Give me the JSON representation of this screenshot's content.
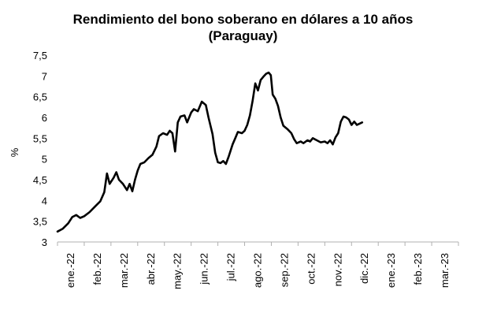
{
  "chart_data": {
    "type": "line",
    "title": "Rendimiento del bono soberano en dólares a 10 años",
    "subtitle": "(Paraguay)",
    "xlabel": "",
    "ylabel": "%",
    "ylim": [
      3,
      7.5
    ],
    "yticks": [
      "3",
      "3,5",
      "4",
      "4,5",
      "5",
      "5,5",
      "6",
      "6,5",
      "7",
      "7,5"
    ],
    "x_tick_labels": [
      "ene.-22",
      "feb.-22",
      "mar.-22",
      "abr.-22",
      "may.-22",
      "jun.-22",
      "jul.-22",
      "ago.-22",
      "sep.-22",
      "oct.-22",
      "nov.-22",
      "dic.-22",
      "ene.-23",
      "feb.-23",
      "mar.-23"
    ],
    "grid": false,
    "legend": "none",
    "line_color": "#000000",
    "series": [
      {
        "name": "",
        "values": [
          [
            0.0,
            3.25
          ],
          [
            0.2,
            3.32
          ],
          [
            0.4,
            3.45
          ],
          [
            0.55,
            3.6
          ],
          [
            0.7,
            3.65
          ],
          [
            0.85,
            3.58
          ],
          [
            1.0,
            3.62
          ],
          [
            1.2,
            3.72
          ],
          [
            1.4,
            3.85
          ],
          [
            1.6,
            3.98
          ],
          [
            1.75,
            4.2
          ],
          [
            1.85,
            4.65
          ],
          [
            1.95,
            4.4
          ],
          [
            2.1,
            4.55
          ],
          [
            2.2,
            4.68
          ],
          [
            2.3,
            4.5
          ],
          [
            2.45,
            4.4
          ],
          [
            2.6,
            4.25
          ],
          [
            2.7,
            4.4
          ],
          [
            2.8,
            4.22
          ],
          [
            2.9,
            4.5
          ],
          [
            3.0,
            4.72
          ],
          [
            3.1,
            4.88
          ],
          [
            3.25,
            4.92
          ],
          [
            3.4,
            5.02
          ],
          [
            3.55,
            5.1
          ],
          [
            3.7,
            5.3
          ],
          [
            3.8,
            5.55
          ],
          [
            3.95,
            5.62
          ],
          [
            4.1,
            5.58
          ],
          [
            4.2,
            5.68
          ],
          [
            4.3,
            5.62
          ],
          [
            4.4,
            5.18
          ],
          [
            4.5,
            5.88
          ],
          [
            4.6,
            6.02
          ],
          [
            4.75,
            6.05
          ],
          [
            4.85,
            5.88
          ],
          [
            5.0,
            6.12
          ],
          [
            5.1,
            6.2
          ],
          [
            5.25,
            6.15
          ],
          [
            5.4,
            6.38
          ],
          [
            5.55,
            6.3
          ],
          [
            5.65,
            6.0
          ],
          [
            5.8,
            5.6
          ],
          [
            5.9,
            5.15
          ],
          [
            6.0,
            4.92
          ],
          [
            6.1,
            4.9
          ],
          [
            6.2,
            4.95
          ],
          [
            6.3,
            4.88
          ],
          [
            6.4,
            5.05
          ],
          [
            6.55,
            5.35
          ],
          [
            6.65,
            5.5
          ],
          [
            6.75,
            5.65
          ],
          [
            6.9,
            5.62
          ],
          [
            7.0,
            5.68
          ],
          [
            7.1,
            5.82
          ],
          [
            7.2,
            6.05
          ],
          [
            7.3,
            6.4
          ],
          [
            7.4,
            6.82
          ],
          [
            7.5,
            6.65
          ],
          [
            7.6,
            6.9
          ],
          [
            7.7,
            6.98
          ],
          [
            7.8,
            7.05
          ],
          [
            7.9,
            7.08
          ],
          [
            7.98,
            7.02
          ],
          [
            8.05,
            6.55
          ],
          [
            8.15,
            6.45
          ],
          [
            8.25,
            6.28
          ],
          [
            8.35,
            6.0
          ],
          [
            8.45,
            5.8
          ],
          [
            8.6,
            5.72
          ],
          [
            8.75,
            5.62
          ],
          [
            8.85,
            5.48
          ],
          [
            8.95,
            5.38
          ],
          [
            9.1,
            5.42
          ],
          [
            9.2,
            5.38
          ],
          [
            9.35,
            5.45
          ],
          [
            9.45,
            5.42
          ],
          [
            9.55,
            5.5
          ],
          [
            9.7,
            5.45
          ],
          [
            9.85,
            5.4
          ],
          [
            10.0,
            5.42
          ],
          [
            10.1,
            5.38
          ],
          [
            10.2,
            5.45
          ],
          [
            10.3,
            5.35
          ],
          [
            10.4,
            5.52
          ],
          [
            10.5,
            5.62
          ],
          [
            10.6,
            5.9
          ],
          [
            10.7,
            6.02
          ],
          [
            10.8,
            6.0
          ],
          [
            10.9,
            5.95
          ],
          [
            11.0,
            5.82
          ],
          [
            11.1,
            5.9
          ],
          [
            11.2,
            5.82
          ],
          [
            11.3,
            5.85
          ],
          [
            11.4,
            5.88
          ]
        ]
      }
    ]
  }
}
